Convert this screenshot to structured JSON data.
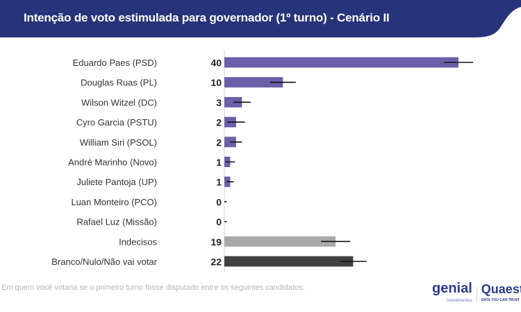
{
  "header": {
    "title": "Intenção de voto estimulada para governador (1º turno) - Cenário II",
    "color": "#283479"
  },
  "footnote": "Em quem você votaria se o primeiro turno fosse disputado entre os seguintes candidatos:",
  "logos": {
    "genial": "genial",
    "genial_sub": "investimentos",
    "quaest": "Quaest",
    "quaest_sub": "DATA YOU CAN TRUST"
  },
  "chart_data": {
    "type": "bar",
    "orientation": "horizontal",
    "categories": [
      "Eduardo Paes (PSD)",
      "Douglas Ruas (PL)",
      "Wilson Witzel (DC)",
      "Cyro Garcia (PSTU)",
      "William Siri (PSOL)",
      "André Marinho (Novo)",
      "Juliete Pantoja (UP)",
      "Luan Monteiro (PCO)",
      "Rafael Luz (Missão)",
      "Indecisos",
      "Branco/Nulo/Não vai votar"
    ],
    "values": [
      40,
      10,
      3,
      2,
      2,
      1,
      1,
      0,
      0,
      19,
      22
    ],
    "error_margin": [
      2.5,
      2.2,
      1.5,
      1.5,
      1.0,
      0.8,
      0.6,
      0.4,
      0.4,
      2.5,
      2.3
    ],
    "colors": [
      "#6a5fa8",
      "#6a5fa8",
      "#6a5fa8",
      "#6a5fa8",
      "#6a5fa8",
      "#6a5fa8",
      "#6a5fa8",
      "#6a5fa8",
      "#6a5fa8",
      "#a9a9a9",
      "#404040"
    ],
    "xlim": [
      0,
      40
    ],
    "grid": false
  }
}
